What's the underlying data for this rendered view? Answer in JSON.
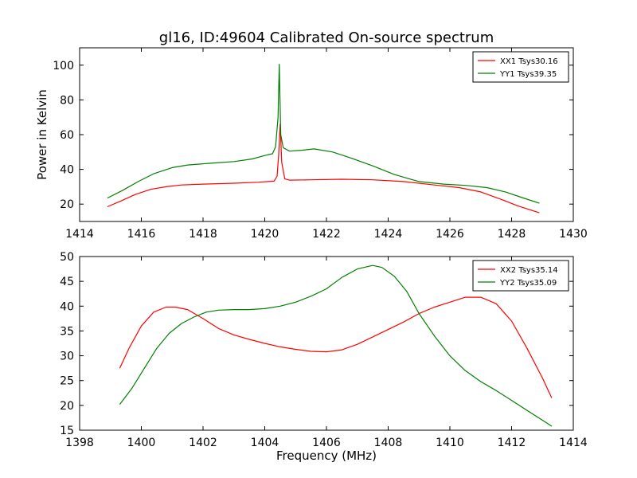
{
  "title": "gl16, ID:49604 Calibrated On-source spectrum",
  "chart_data": [
    {
      "type": "line",
      "ylabel": "Power in Kelvin",
      "xlabel": "",
      "xlim": [
        1414,
        1430
      ],
      "ylim": [
        10,
        110
      ],
      "xticks": [
        "1414",
        "1416",
        "1418",
        "1420",
        "1422",
        "1424",
        "1426",
        "1428",
        "1430"
      ],
      "yticks": [
        "20",
        "40",
        "60",
        "80",
        "100"
      ],
      "legend_position": "top-right",
      "series": [
        {
          "name": "XX1 Tsys30.16",
          "color": "#ff0000",
          "x": [
            1414.9,
            1415.3,
            1415.8,
            1416.3,
            1416.8,
            1417.3,
            1418.0,
            1419.0,
            1419.8,
            1420.3,
            1420.4,
            1420.45,
            1420.5,
            1420.55,
            1420.65,
            1420.8,
            1421.5,
            1422.5,
            1423.5,
            1424.5,
            1425.5,
            1426.3,
            1427.0,
            1427.7,
            1428.2,
            1428.9
          ],
          "y": [
            18.5,
            21.5,
            25.5,
            28.5,
            30.0,
            31.0,
            31.5,
            32.0,
            32.6,
            33.2,
            36.0,
            48.0,
            66.0,
            44.0,
            34.5,
            33.8,
            34.0,
            34.3,
            34.0,
            33.0,
            31.0,
            29.5,
            27.0,
            22.5,
            19.0,
            15.0
          ]
        },
        {
          "name": "YY1 Tsys39.35",
          "color": "#008000",
          "x": [
            1414.9,
            1415.4,
            1415.9,
            1416.4,
            1417.0,
            1417.5,
            1418.2,
            1419.0,
            1419.6,
            1420.0,
            1420.25,
            1420.35,
            1420.43,
            1420.47,
            1420.52,
            1420.6,
            1420.8,
            1421.2,
            1421.6,
            1422.2,
            1422.8,
            1423.5,
            1424.2,
            1425.0,
            1425.8,
            1426.5,
            1427.2,
            1427.8,
            1428.3,
            1428.9
          ],
          "y": [
            23.5,
            28.0,
            33.0,
            37.5,
            41.0,
            42.5,
            43.5,
            44.5,
            46.0,
            48.0,
            49.0,
            53.0,
            70.0,
            100.5,
            60.0,
            52.5,
            50.5,
            51.0,
            51.8,
            50.0,
            46.5,
            42.0,
            37.0,
            33.0,
            31.5,
            30.8,
            29.5,
            27.0,
            24.0,
            20.5
          ]
        }
      ]
    },
    {
      "type": "line",
      "xlabel": "Frequency (MHz)",
      "ylabel": "",
      "xlim": [
        1398,
        1414
      ],
      "ylim": [
        15,
        50
      ],
      "xticks": [
        "1398",
        "1400",
        "1402",
        "1404",
        "1406",
        "1408",
        "1410",
        "1412",
        "1414"
      ],
      "yticks": [
        "15",
        "20",
        "25",
        "30",
        "35",
        "40",
        "45",
        "50"
      ],
      "legend_position": "top-right",
      "series": [
        {
          "name": "XX2 Tsys35.14",
          "color": "#ff0000",
          "x": [
            1399.3,
            1399.6,
            1400.0,
            1400.4,
            1400.8,
            1401.1,
            1401.5,
            1402.0,
            1402.5,
            1403.0,
            1403.5,
            1404.0,
            1404.5,
            1405.0,
            1405.5,
            1406.0,
            1406.5,
            1407.0,
            1407.5,
            1408.0,
            1408.5,
            1409.0,
            1409.5,
            1410.0,
            1410.5,
            1411.0,
            1411.5,
            1412.0,
            1412.5,
            1413.0,
            1413.3
          ],
          "y": [
            27.5,
            31.5,
            36.0,
            38.8,
            39.8,
            39.8,
            39.3,
            37.5,
            35.5,
            34.2,
            33.3,
            32.5,
            31.8,
            31.3,
            30.9,
            30.8,
            31.2,
            32.3,
            33.8,
            35.3,
            36.8,
            38.5,
            39.8,
            40.8,
            41.8,
            41.8,
            40.5,
            37.0,
            31.5,
            25.5,
            21.5
          ]
        },
        {
          "name": "YY2 Tsys35.09",
          "color": "#008000",
          "x": [
            1399.3,
            1399.7,
            1400.1,
            1400.5,
            1400.9,
            1401.3,
            1401.7,
            1402.1,
            1402.5,
            1403.0,
            1403.5,
            1404.0,
            1404.5,
            1405.0,
            1405.5,
            1406.0,
            1406.5,
            1407.0,
            1407.5,
            1407.8,
            1408.2,
            1408.6,
            1409.0,
            1409.5,
            1410.0,
            1410.5,
            1411.0,
            1411.5,
            1412.0,
            1412.5,
            1413.0,
            1413.3
          ],
          "y": [
            20.2,
            23.5,
            27.5,
            31.5,
            34.5,
            36.5,
            37.8,
            38.8,
            39.2,
            39.3,
            39.3,
            39.5,
            40.0,
            40.8,
            42.0,
            43.5,
            45.8,
            47.5,
            48.2,
            47.8,
            46.0,
            43.0,
            38.5,
            34.0,
            30.0,
            27.0,
            24.8,
            23.0,
            21.0,
            19.0,
            17.0,
            15.8
          ]
        }
      ]
    }
  ]
}
